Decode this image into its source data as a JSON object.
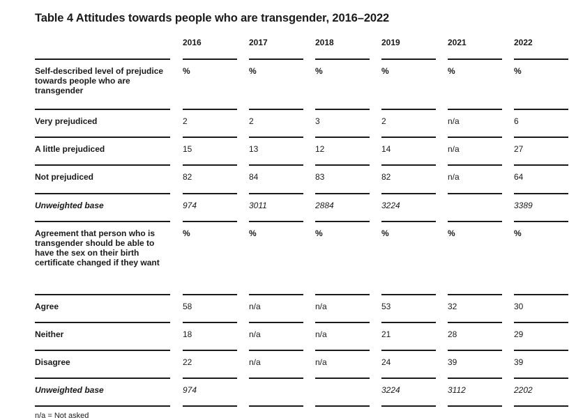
{
  "title": "Table 4 Attitudes towards people who are transgender, 2016–2022",
  "years": [
    "2016",
    "2017",
    "2018",
    "2019",
    "2021",
    "2022"
  ],
  "rows": [
    {
      "label": "Self-described level of prejudice towards people who are transgender",
      "values": [
        "%",
        "%",
        "%",
        "%",
        "%",
        "%"
      ],
      "kind": "section"
    },
    {
      "label": "Very prejudiced",
      "values": [
        "2",
        "2",
        "3",
        "2",
        "n/a",
        "6"
      ],
      "kind": "data"
    },
    {
      "label": "A little prejudiced",
      "values": [
        "15",
        "13",
        "12",
        "14",
        "n/a",
        "27"
      ],
      "kind": "data"
    },
    {
      "label": "Not prejudiced",
      "values": [
        "82",
        "84",
        "83",
        "82",
        "n/a",
        "64"
      ],
      "kind": "data"
    },
    {
      "label": "Unweighted base",
      "values": [
        "974",
        "3011",
        "2884",
        "3224",
        "",
        "3389"
      ],
      "kind": "base"
    },
    {
      "label": "Agreement that person who is transgender should be able to have the sex on their birth certificate changed if they want",
      "values": [
        "%",
        "%",
        "%",
        "%",
        "%",
        "%"
      ],
      "kind": "section"
    },
    {
      "label": "Agree",
      "values": [
        "58",
        "n/a",
        "n/a",
        "53",
        "32",
        "30"
      ],
      "kind": "data"
    },
    {
      "label": "Neither",
      "values": [
        "18",
        "n/a",
        "n/a",
        "21",
        "28",
        "29"
      ],
      "kind": "data"
    },
    {
      "label": "Disagree",
      "values": [
        "22",
        "n/a",
        "n/a",
        "24",
        "39",
        "39"
      ],
      "kind": "data"
    },
    {
      "label": "Unweighted base",
      "values": [
        "974",
        "",
        "",
        "3224",
        "3112",
        "2202"
      ],
      "kind": "base"
    }
  ],
  "footnote": "n/a = Not asked"
}
